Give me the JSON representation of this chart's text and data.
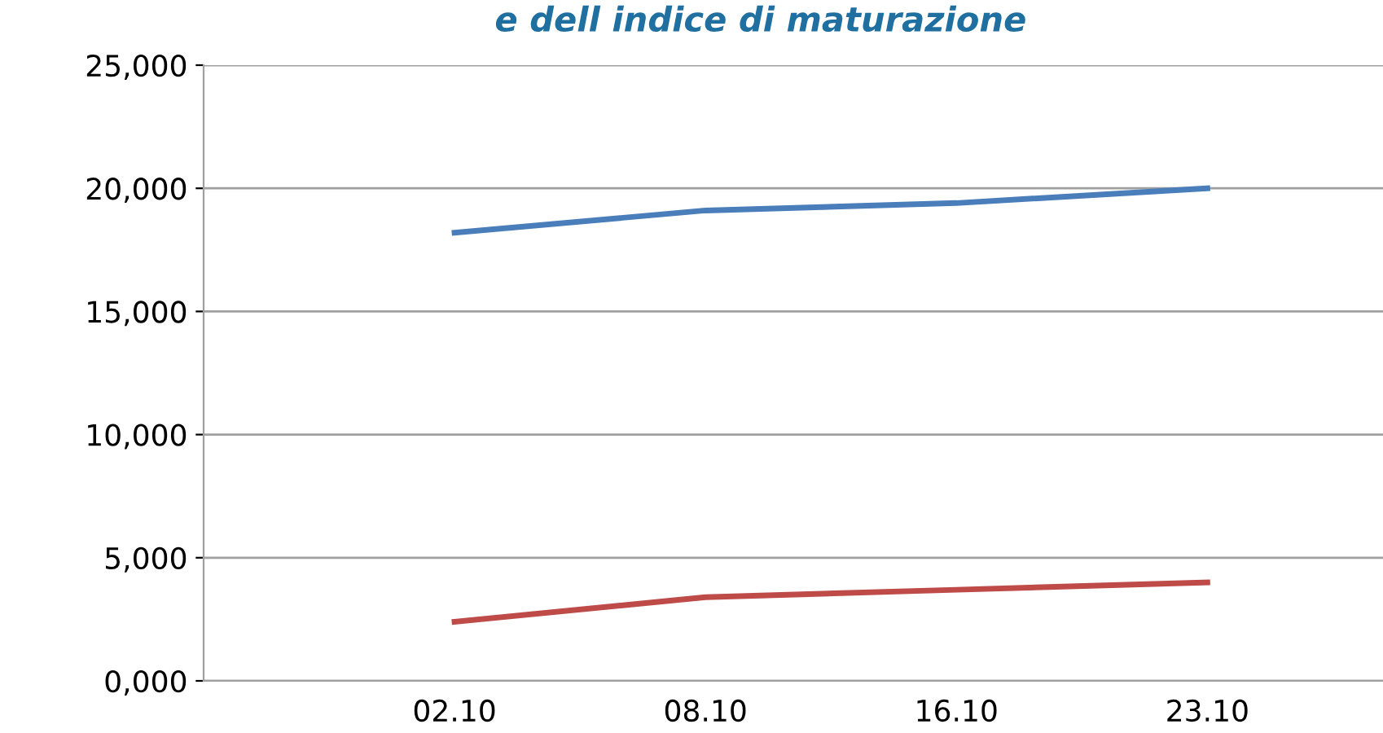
{
  "chart_data": {
    "type": "line",
    "title": "e dell indice di maturazione",
    "categories": [
      "02.10",
      "08.10",
      "16.10",
      "23.10"
    ],
    "series": [
      {
        "color": "#4a7ebb",
        "values": [
          18200,
          19100,
          19400,
          20000
        ]
      },
      {
        "color": "#be4b48",
        "values": [
          2400,
          3400,
          3700,
          4000
        ]
      }
    ],
    "ylim": [
      0,
      25000
    ],
    "yticks": [
      {
        "value": 0,
        "label": "0,000"
      },
      {
        "value": 5000,
        "label": "5,000"
      },
      {
        "value": 10000,
        "label": "10,000"
      },
      {
        "value": 15000,
        "label": "15,000"
      },
      {
        "value": 20000,
        "label": "20,000"
      },
      {
        "value": 25000,
        "label": "25,000"
      }
    ],
    "grid": "y",
    "legend": false,
    "marker": "none",
    "line_style": "solid"
  }
}
